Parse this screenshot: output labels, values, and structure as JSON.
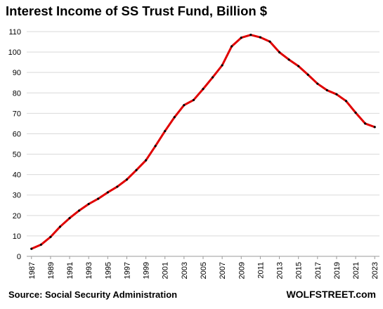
{
  "chart_data": {
    "type": "line",
    "title": "Interest Income of SS Trust Fund, Billion $",
    "xlabel": "",
    "ylabel": "",
    "ylim": [
      0,
      110
    ],
    "yticks": [
      0,
      10,
      20,
      30,
      40,
      50,
      60,
      70,
      80,
      90,
      100,
      110
    ],
    "xticks": [
      "1987",
      "1989",
      "1991",
      "1993",
      "1995",
      "1997",
      "1999",
      "2001",
      "2003",
      "2005",
      "2007",
      "2009",
      "2011",
      "2013",
      "2015",
      "2017",
      "2019",
      "2021",
      "2023"
    ],
    "grid": true,
    "series_color": "#e00000",
    "x": [
      1987,
      1988,
      1989,
      1990,
      1991,
      1992,
      1993,
      1994,
      1995,
      1996,
      1997,
      1998,
      1999,
      2000,
      2001,
      2002,
      2003,
      2004,
      2005,
      2006,
      2007,
      2008,
      2009,
      2010,
      2011,
      2012,
      2013,
      2014,
      2015,
      2016,
      2017,
      2018,
      2019,
      2020,
      2021,
      2022,
      2023
    ],
    "values": [
      3.7,
      5.7,
      9.5,
      14.5,
      18.7,
      22.4,
      25.6,
      28.2,
      31.3,
      34.1,
      37.6,
      42.2,
      47.0,
      54.0,
      61.3,
      68.1,
      74.0,
      76.5,
      81.9,
      87.6,
      93.5,
      102.8,
      107.0,
      108.4,
      107.2,
      105.1,
      99.9,
      96.3,
      93.1,
      88.9,
      84.5,
      81.3,
      79.3,
      76.0,
      70.3,
      65.0,
      63.3
    ],
    "source": "Source: Social Security Administration",
    "brand": "WOLFSTREET.com"
  }
}
